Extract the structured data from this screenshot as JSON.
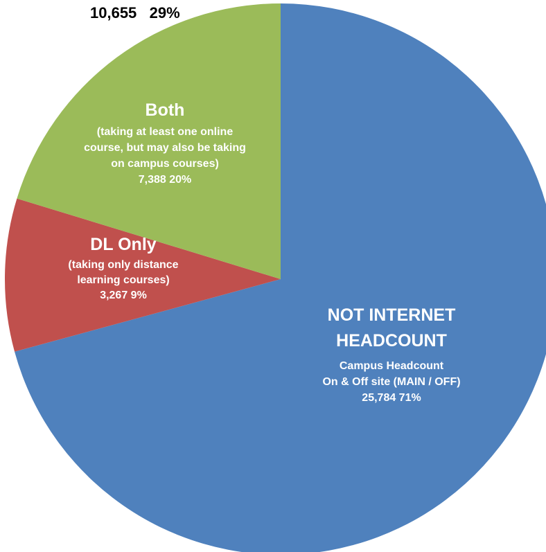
{
  "chart_data": {
    "type": "pie",
    "top_annotation": {
      "value": "10,655",
      "percent": "29%"
    },
    "slices": [
      {
        "key": "not_internet",
        "value": 25784,
        "percent": 71,
        "color": "#4F81BD",
        "title": "NOT INTERNET HEADCOUNT",
        "title_lines": [
          "NOT INTERNET",
          "HEADCOUNT"
        ],
        "desc_lines": [
          "Campus Headcount",
          "On & Off site (MAIN / OFF)"
        ],
        "value_label": "25,784  71%"
      },
      {
        "key": "dl_only",
        "value": 3267,
        "percent": 9,
        "color": "#C0504D",
        "title": "DL Only",
        "title_lines": [
          "DL Only"
        ],
        "desc_lines": [
          "(taking only distance",
          "learning courses)"
        ],
        "value_label": "3,267  9%"
      },
      {
        "key": "both",
        "value": 7388,
        "percent": 20,
        "color": "#9BBB59",
        "title": "Both",
        "title_lines": [
          "Both"
        ],
        "desc_lines": [
          "(taking at least one online",
          "course,  but may also be taking",
          "on campus courses)"
        ],
        "value_label": "7,388  20%"
      }
    ]
  }
}
